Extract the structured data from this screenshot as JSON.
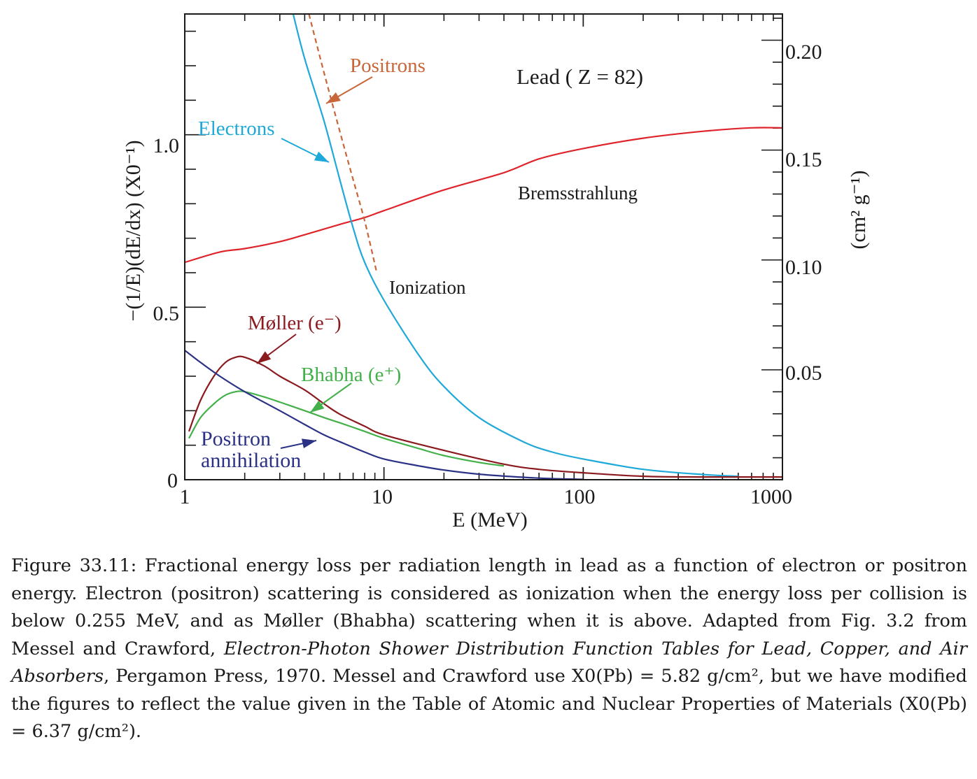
{
  "chart_data": {
    "type": "line",
    "title": "Lead ( Z = 82)",
    "xlabel": "E  (MeV)",
    "ylabel_left": "−(1/E)(dE/dx)  (X0⁻¹)",
    "ylabel_right": "(cm² g⁻¹)",
    "x_scale": "log",
    "xlim": [
      1,
      1000
    ],
    "ylim": [
      0,
      1.35
    ],
    "x_ticks": [
      "1",
      "10",
      "100",
      "1000"
    ],
    "y_ticks_left": [
      "0",
      "0.5",
      "1.0"
    ],
    "y_ticks_right": [
      "0.05",
      "0.10",
      "0.15",
      "0.20"
    ],
    "series": [
      {
        "name": "Bremsstrahlung",
        "color": "#e0242c",
        "x": [
          1,
          1.5,
          2,
          3,
          4,
          6,
          8,
          10,
          20,
          40,
          60,
          100,
          200,
          400,
          700,
          1000
        ],
        "y": [
          0.63,
          0.66,
          0.67,
          0.69,
          0.71,
          0.74,
          0.76,
          0.78,
          0.84,
          0.89,
          0.93,
          0.96,
          0.99,
          1.01,
          1.02,
          1.02
        ]
      },
      {
        "name": "Ionization",
        "color": "#1fa9d8",
        "x": [
          3.5,
          4,
          5,
          6,
          7,
          8,
          10,
          15,
          20,
          30,
          50,
          70,
          100,
          200,
          400,
          600
        ],
        "y": [
          1.35,
          1.22,
          1.04,
          0.87,
          0.73,
          0.63,
          0.52,
          0.36,
          0.27,
          0.18,
          0.11,
          0.08,
          0.06,
          0.03,
          0.015,
          0.01
        ]
      },
      {
        "name": "Positrons",
        "color": "#c8663a",
        "x": [
          4.2,
          5,
          6,
          7,
          8,
          9.2
        ],
        "y": [
          1.35,
          1.18,
          1.01,
          0.87,
          0.75,
          0.6
        ]
      },
      {
        "name": "Møller (e⁻)",
        "color": "#8b1a1f",
        "x": [
          1.05,
          1.2,
          1.4,
          1.6,
          1.8,
          2,
          2.5,
          3,
          4,
          5,
          6,
          8,
          10,
          20,
          40,
          60,
          100,
          200,
          400,
          1000
        ],
        "y": [
          0.14,
          0.23,
          0.3,
          0.34,
          0.355,
          0.355,
          0.33,
          0.3,
          0.26,
          0.22,
          0.19,
          0.155,
          0.13,
          0.085,
          0.045,
          0.03,
          0.02,
          0.01,
          0.008,
          0.008
        ]
      },
      {
        "name": "Bhabha (e⁺)",
        "color": "#43b049",
        "x": [
          1.05,
          1.2,
          1.4,
          1.6,
          1.8,
          2,
          2.5,
          3,
          4,
          5,
          6,
          8,
          10,
          15,
          20,
          30,
          40
        ],
        "y": [
          0.12,
          0.18,
          0.22,
          0.245,
          0.255,
          0.255,
          0.24,
          0.225,
          0.2,
          0.18,
          0.165,
          0.14,
          0.12,
          0.09,
          0.07,
          0.05,
          0.04
        ]
      },
      {
        "name": "Positron annihilation",
        "color": "#2b3286",
        "x": [
          1,
          1.2,
          1.5,
          2,
          3,
          4,
          5,
          6,
          8,
          10,
          15,
          20,
          30,
          50,
          70,
          100
        ],
        "y": [
          0.375,
          0.34,
          0.3,
          0.255,
          0.2,
          0.16,
          0.13,
          0.11,
          0.08,
          0.06,
          0.04,
          0.028,
          0.016,
          0.007,
          0.003,
          0.001
        ]
      }
    ],
    "annotations": {
      "positrons": "Positrons",
      "electrons": "Electrons",
      "bremsstrahlung": "Bremsstrahlung",
      "ionization": "Ionization",
      "moller": "Møller (e⁻)",
      "bhabha": "Bhabha (e⁺)",
      "positron_line1": "Positron",
      "positron_line2": "annihilation"
    }
  },
  "caption": {
    "figure_label": "Figure 33.11:",
    "text_1": "Fractional energy loss per radiation length in lead as a function of electron or positron energy. Electron (positron) scattering is considered as ionization when the energy loss per collision is below 0.255 MeV, and as Møller (Bhabha) scattering when it is above. Adapted from Fig. 3.2 from Messel and Crawford,",
    "italic_title": "Electron-Photon Shower Distribution Function Tables for Lead, Copper, and Air Absorbers",
    "text_2": ", Pergamon Press, 1970. Messel and Crawford use X0(Pb) = 5.82 g/cm², but we have modified the figures to reflect the value given in the Table of Atomic and Nuclear Properties of Materials (X0(Pb) = 6.37 g/cm²)."
  }
}
